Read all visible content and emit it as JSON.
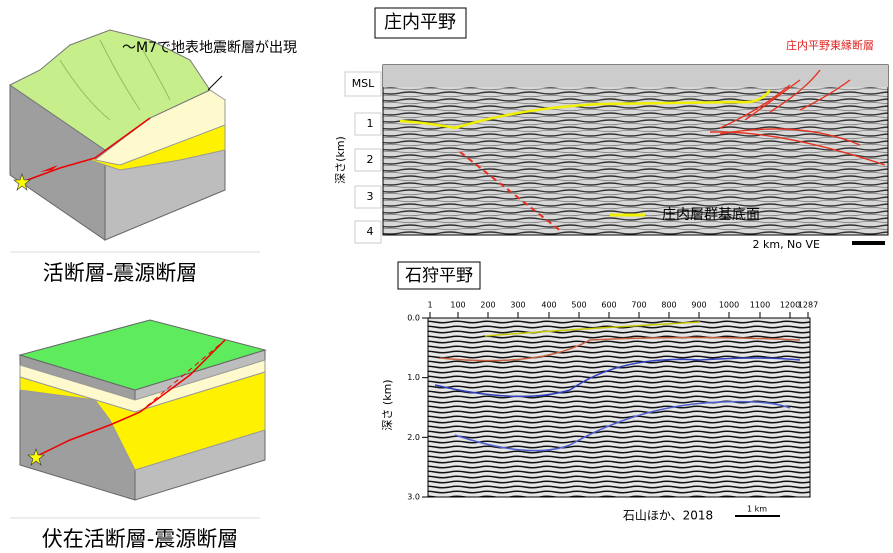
{
  "left": {
    "annotation": "～M7で地表地震断層が出現",
    "top_caption": "活断層-震源断層",
    "bottom_caption": "伏在活断層-震源断層"
  },
  "shonai": {
    "title": "庄内平野",
    "fault_label": "庄内平野東縁断層",
    "msl": "MSL",
    "depth_labels": [
      "1",
      "2",
      "3",
      "4"
    ],
    "depth_axis": "深さ(km)",
    "legend": "庄内層群基底面",
    "scale": "2 km, No VE"
  },
  "ishikari": {
    "title": "石狩平野",
    "top_labels": [
      "1",
      "100",
      "200",
      "300",
      "400",
      "500",
      "600",
      "700",
      "800",
      "900",
      "1000",
      "1100",
      "1200",
      "1287"
    ],
    "depth_labels": [
      "0.0",
      "1.0",
      "2.0",
      "3.0"
    ],
    "depth_axis": "深さ (km)",
    "source": "石山ほか、2018",
    "scale": "1 km"
  }
}
